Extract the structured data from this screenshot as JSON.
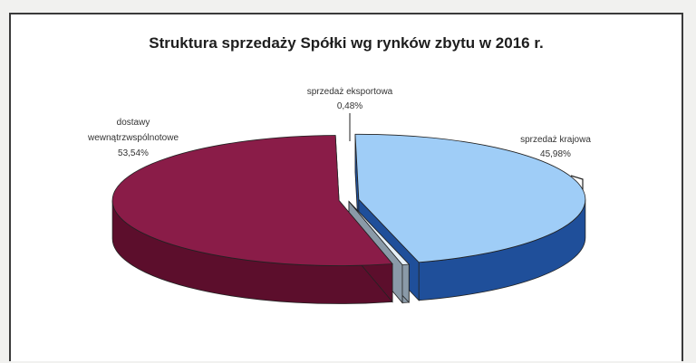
{
  "chart_data": {
    "type": "pie",
    "title": "Struktura sprzedaży Spółki wg rynków zbytu w 2016 r.",
    "labels": [
      "sprzedaż krajowa",
      "sprzedaż eksportowa",
      "dostawy wewnątrzwspólnotowe"
    ],
    "values": [
      45.98,
      0.48,
      53.54
    ],
    "value_labels": [
      "45,98%",
      "0,48%",
      "53,54%"
    ],
    "colors": {
      "sprzedaż krajowa": {
        "top": "#9fcdf7",
        "side": "#1f4f9a"
      },
      "sprzedaż eksportowa": {
        "top": "#e6f0f8",
        "side": "#8a9aa8"
      },
      "dostawy wewnątrzwspólnotowe": {
        "top": "#8a1c48",
        "side": "#5c0e2c"
      }
    },
    "style": "3d-exploded",
    "legend": "none"
  }
}
